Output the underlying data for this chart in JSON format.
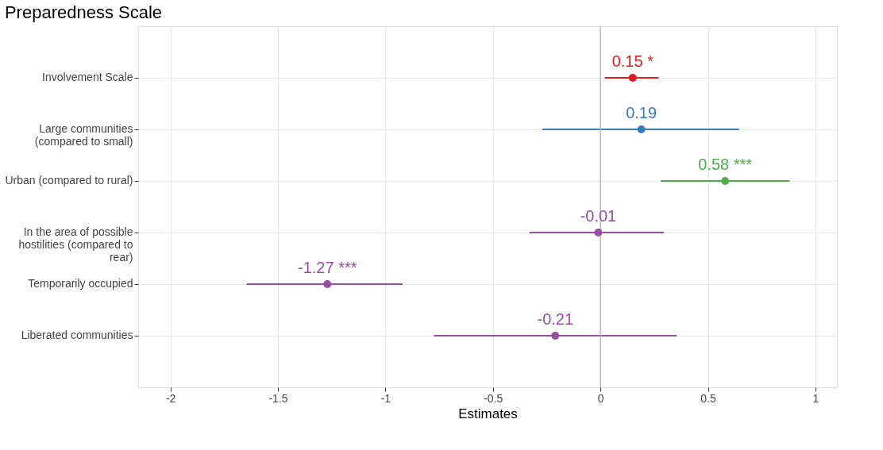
{
  "chart_data": {
    "type": "scatter",
    "orientation": "horizontal",
    "title": "Preparedness Scale",
    "xlabel": "Estimates",
    "categories": [
      "Involvement Scale",
      "Large communities\n(compared to small)",
      "Urban (compared to rural)",
      "In the area of possible\nhostilities (compared to\nrear)",
      "Temporarily occupied",
      "Liberated communities"
    ],
    "values": [
      0.15,
      0.19,
      0.58,
      -0.01,
      -1.27,
      -0.21
    ],
    "errors": [
      [
        0.02,
        0.27
      ],
      [
        -0.27,
        0.645
      ],
      [
        0.28,
        0.88
      ],
      [
        -0.33,
        0.295
      ],
      [
        -1.645,
        -0.92
      ],
      [
        -0.775,
        0.355
      ]
    ],
    "colors": [
      "#e41a1c",
      "#377eb8",
      "#4daf4a",
      "#984ea3",
      "#984ea3",
      "#984ea3"
    ],
    "value_labels": [
      "0.15 *",
      "0.19",
      "0.58 ***",
      "-0.01",
      "-1.27 ***",
      "-0.21"
    ],
    "xlim": [
      -2.15,
      1.1
    ],
    "xticks": [
      -2,
      -1.5,
      -1,
      -0.5,
      0,
      0.5,
      1
    ],
    "ref_lines": [
      {
        "axis": "x",
        "value": 0,
        "color": "#bbbbbb"
      }
    ],
    "grid": true,
    "marker": "circle"
  }
}
